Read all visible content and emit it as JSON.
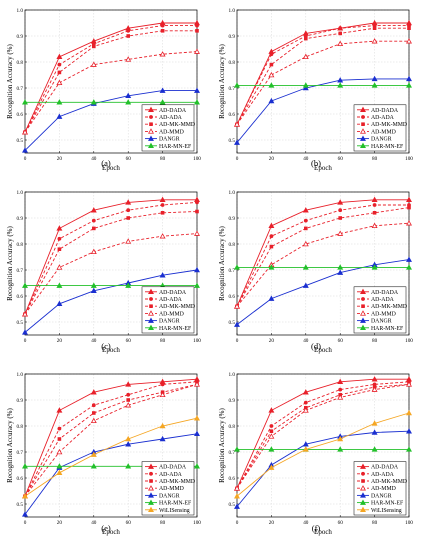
{
  "figure": {
    "panel_labels": [
      "(a)",
      "(b)",
      "(c)",
      "(d)",
      "(e)",
      "(f)"
    ]
  },
  "series_styles": [
    {
      "name": "AD-DADA",
      "color": "#e8202a",
      "dash": "",
      "marker": "tri"
    },
    {
      "name": "AD-ADA",
      "color": "#e8202a",
      "dash": "3,2",
      "marker": "circle"
    },
    {
      "name": "AD-MK-MMD",
      "color": "#e8202a",
      "dash": "3,2",
      "marker": "square"
    },
    {
      "name": "AD-MMD",
      "color": "#e8202a",
      "dash": "3,2",
      "marker": "tri-open"
    },
    {
      "name": "DANGR",
      "color": "#1a2fd0",
      "dash": "",
      "marker": "tri"
    },
    {
      "name": "HAR-MN-EF",
      "color": "#22c02a",
      "dash": "",
      "marker": "tri"
    },
    {
      "name": "WiLISensing",
      "color": "#f5a623",
      "dash": "",
      "marker": "tri"
    }
  ],
  "chart_data": [
    {
      "type": "line",
      "title": "",
      "xlabel": "Epoch",
      "ylabel": "Recognition Accuracy (%)",
      "xlim": [
        0,
        100
      ],
      "ylim": [
        0.45,
        1.0
      ],
      "xticks": [
        0,
        20,
        40,
        60,
        80,
        100
      ],
      "xtick_labels": [
        "0",
        "20",
        "40",
        "60",
        "80",
        "100"
      ],
      "yticks": [
        0.5,
        0.6,
        0.7,
        0.8,
        0.9,
        1.0
      ],
      "ytick_labels": [
        "0.5",
        "0.6",
        "0.7",
        "0.8",
        "0.9",
        "1.0"
      ],
      "grid": true,
      "legend": "bottom-right",
      "legend_entries": [
        "AD-DADA",
        "AD-ADA",
        "AD-MK-MMD",
        "AD-MMD",
        "DANGR",
        "HAR-MN-EF"
      ],
      "x": [
        0,
        20,
        40,
        60,
        80,
        100
      ],
      "series": [
        {
          "name": "AD-DADA",
          "values": [
            0.53,
            0.82,
            0.88,
            0.93,
            0.95,
            0.95
          ]
        },
        {
          "name": "AD-ADA",
          "values": [
            0.53,
            0.79,
            0.87,
            0.92,
            0.94,
            0.94
          ]
        },
        {
          "name": "AD-MK-MMD",
          "values": [
            0.53,
            0.76,
            0.86,
            0.9,
            0.92,
            0.92
          ]
        },
        {
          "name": "AD-MMD",
          "values": [
            0.53,
            0.72,
            0.79,
            0.81,
            0.83,
            0.84
          ]
        },
        {
          "name": "DANGR",
          "values": [
            0.46,
            0.59,
            0.64,
            0.67,
            0.69,
            0.69
          ]
        },
        {
          "name": "HAR-MN-EF",
          "values": [
            0.645,
            0.645,
            0.645,
            0.645,
            0.645,
            0.645
          ]
        }
      ]
    },
    {
      "type": "line",
      "title": "",
      "xlabel": "Epoch",
      "ylabel": "Recognition Accuracy (%)",
      "xlim": [
        0,
        100
      ],
      "ylim": [
        0.45,
        1.0
      ],
      "xticks": [
        0,
        20,
        40,
        60,
        80,
        100
      ],
      "xtick_labels": [
        "0",
        "20",
        "40",
        "60",
        "80",
        "100"
      ],
      "yticks": [
        0.5,
        0.6,
        0.7,
        0.8,
        0.9,
        1.0
      ],
      "ytick_labels": [
        "0.5",
        "0.6",
        "0.7",
        "0.8",
        "0.9",
        "1.0"
      ],
      "grid": true,
      "legend": "bottom-right",
      "legend_entries": [
        "AD-DADA",
        "AD-ADA",
        "AD-MK-MMD",
        "AD-MMD",
        "DANGR",
        "HAR-MN-EF"
      ],
      "x": [
        0,
        20,
        40,
        60,
        80,
        100
      ],
      "series": [
        {
          "name": "AD-DADA",
          "values": [
            0.56,
            0.84,
            0.91,
            0.93,
            0.95,
            0.95
          ]
        },
        {
          "name": "AD-ADA",
          "values": [
            0.56,
            0.83,
            0.9,
            0.93,
            0.94,
            0.94
          ]
        },
        {
          "name": "AD-MK-MMD",
          "values": [
            0.56,
            0.79,
            0.89,
            0.91,
            0.93,
            0.93
          ]
        },
        {
          "name": "AD-MMD",
          "values": [
            0.56,
            0.75,
            0.82,
            0.87,
            0.88,
            0.88
          ]
        },
        {
          "name": "DANGR",
          "values": [
            0.49,
            0.65,
            0.7,
            0.73,
            0.735,
            0.735
          ]
        },
        {
          "name": "HAR-MN-EF",
          "values": [
            0.71,
            0.71,
            0.71,
            0.71,
            0.71,
            0.71
          ]
        }
      ]
    },
    {
      "type": "line",
      "title": "",
      "xlabel": "Epoch",
      "ylabel": "Recognition Accuracy (%)",
      "xlim": [
        0,
        100
      ],
      "ylim": [
        0.45,
        1.0
      ],
      "xticks": [
        0,
        20,
        40,
        60,
        80,
        100
      ],
      "xtick_labels": [
        "0",
        "20",
        "40",
        "60",
        "80",
        "100"
      ],
      "yticks": [
        0.5,
        0.6,
        0.7,
        0.8,
        0.9,
        1.0
      ],
      "ytick_labels": [
        "0.5",
        "0.6",
        "0.7",
        "0.8",
        "0.9",
        "1.0"
      ],
      "grid": true,
      "legend": "bottom-right",
      "legend_entries": [
        "AD-DADA",
        "AD-ADA",
        "AD-MK-MMD",
        "AD-MMD",
        "DANGR",
        "HAR-MN-EF"
      ],
      "x": [
        0,
        20,
        40,
        60,
        80,
        100
      ],
      "series": [
        {
          "name": "AD-DADA",
          "values": [
            0.53,
            0.86,
            0.93,
            0.96,
            0.97,
            0.97
          ]
        },
        {
          "name": "AD-ADA",
          "values": [
            0.53,
            0.82,
            0.89,
            0.93,
            0.95,
            0.96
          ]
        },
        {
          "name": "AD-MK-MMD",
          "values": [
            0.53,
            0.78,
            0.86,
            0.9,
            0.92,
            0.925
          ]
        },
        {
          "name": "AD-MMD",
          "values": [
            0.53,
            0.71,
            0.77,
            0.81,
            0.83,
            0.84
          ]
        },
        {
          "name": "DANGR",
          "values": [
            0.46,
            0.57,
            0.62,
            0.65,
            0.68,
            0.7
          ]
        },
        {
          "name": "HAR-MN-EF",
          "values": [
            0.64,
            0.64,
            0.64,
            0.64,
            0.64,
            0.64
          ]
        }
      ]
    },
    {
      "type": "line",
      "title": "",
      "xlabel": "Epoch",
      "ylabel": "Recognition Accuracy (%)",
      "xlim": [
        0,
        100
      ],
      "ylim": [
        0.45,
        1.0
      ],
      "xticks": [
        0,
        20,
        40,
        60,
        80,
        100
      ],
      "xtick_labels": [
        "0",
        "20",
        "40",
        "60",
        "80",
        "100"
      ],
      "yticks": [
        0.5,
        0.6,
        0.7,
        0.8,
        0.9,
        1.0
      ],
      "ytick_labels": [
        "0.5",
        "0.6",
        "0.7",
        "0.8",
        "0.9",
        "1.0"
      ],
      "grid": true,
      "legend": "bottom-right",
      "legend_entries": [
        "AD-DADA",
        "AD-ADA",
        "AD-MK-MMD",
        "AD-MMD",
        "DANGR",
        "HAR-MN-EF"
      ],
      "x": [
        0,
        20,
        40,
        60,
        80,
        100
      ],
      "series": [
        {
          "name": "AD-DADA",
          "values": [
            0.56,
            0.87,
            0.93,
            0.96,
            0.97,
            0.97
          ]
        },
        {
          "name": "AD-ADA",
          "values": [
            0.56,
            0.83,
            0.89,
            0.93,
            0.95,
            0.95
          ]
        },
        {
          "name": "AD-MK-MMD",
          "values": [
            0.56,
            0.79,
            0.86,
            0.9,
            0.92,
            0.94
          ]
        },
        {
          "name": "AD-MMD",
          "values": [
            0.56,
            0.72,
            0.8,
            0.84,
            0.87,
            0.88
          ]
        },
        {
          "name": "DANGR",
          "values": [
            0.49,
            0.59,
            0.64,
            0.69,
            0.72,
            0.74
          ]
        },
        {
          "name": "HAR-MN-EF",
          "values": [
            0.71,
            0.71,
            0.71,
            0.71,
            0.71,
            0.71
          ]
        }
      ]
    },
    {
      "type": "line",
      "title": "",
      "xlabel": "Epoch",
      "ylabel": "Recognition Accuracy (%)",
      "xlim": [
        0,
        100
      ],
      "ylim": [
        0.45,
        1.0
      ],
      "xticks": [
        0,
        20,
        40,
        60,
        80,
        100
      ],
      "xtick_labels": [
        "0",
        "20",
        "40",
        "60",
        "80",
        "100"
      ],
      "yticks": [
        0.5,
        0.6,
        0.7,
        0.8,
        0.9,
        1.0
      ],
      "ytick_labels": [
        "0.5",
        "0.6",
        "0.7",
        "0.8",
        "0.9",
        "1.0"
      ],
      "grid": true,
      "legend": "bottom-right",
      "legend_entries": [
        "AD-DADA",
        "AD-ADA",
        "AD-MK-MMD",
        "AD-MMD",
        "DANGR",
        "HAR-MN-EF",
        "WiLISensing"
      ],
      "x": [
        0,
        20,
        40,
        60,
        80,
        100
      ],
      "series": [
        {
          "name": "AD-DADA",
          "values": [
            0.53,
            0.86,
            0.93,
            0.96,
            0.97,
            0.98
          ]
        },
        {
          "name": "AD-ADA",
          "values": [
            0.53,
            0.79,
            0.88,
            0.92,
            0.96,
            0.97
          ]
        },
        {
          "name": "AD-MK-MMD",
          "values": [
            0.53,
            0.75,
            0.85,
            0.9,
            0.93,
            0.96
          ]
        },
        {
          "name": "AD-MMD",
          "values": [
            0.53,
            0.7,
            0.82,
            0.88,
            0.92,
            0.96
          ]
        },
        {
          "name": "DANGR",
          "values": [
            0.46,
            0.64,
            0.7,
            0.73,
            0.75,
            0.77
          ]
        },
        {
          "name": "HAR-MN-EF",
          "values": [
            0.645,
            0.645,
            0.645,
            0.645,
            0.645,
            0.645
          ]
        },
        {
          "name": "WiLISensing",
          "values": [
            0.53,
            0.62,
            0.69,
            0.75,
            0.8,
            0.83
          ]
        }
      ]
    },
    {
      "type": "line",
      "title": "",
      "xlabel": "Epoch",
      "ylabel": "Recognition Accuracy (%)",
      "xlim": [
        0,
        100
      ],
      "ylim": [
        0.45,
        1.0
      ],
      "xticks": [
        0,
        20,
        40,
        60,
        80,
        100
      ],
      "xtick_labels": [
        "0",
        "20",
        "40",
        "60",
        "80",
        "100"
      ],
      "yticks": [
        0.5,
        0.6,
        0.7,
        0.8,
        0.9,
        1.0
      ],
      "ytick_labels": [
        "0.5",
        "0.6",
        "0.7",
        "0.8",
        "0.9",
        "1.0"
      ],
      "grid": true,
      "legend": "bottom-right",
      "legend_entries": [
        "AD-DADA",
        "AD-ADA",
        "AD-MK-MMD",
        "AD-MMD",
        "DANGR",
        "HAR-MN-EF",
        "WiLISensing"
      ],
      "x": [
        0,
        20,
        40,
        60,
        80,
        100
      ],
      "series": [
        {
          "name": "AD-DADA",
          "values": [
            0.56,
            0.86,
            0.93,
            0.97,
            0.98,
            0.98
          ]
        },
        {
          "name": "AD-ADA",
          "values": [
            0.56,
            0.8,
            0.89,
            0.94,
            0.96,
            0.97
          ]
        },
        {
          "name": "AD-MK-MMD",
          "values": [
            0.56,
            0.78,
            0.87,
            0.92,
            0.95,
            0.96
          ]
        },
        {
          "name": "AD-MMD",
          "values": [
            0.56,
            0.76,
            0.86,
            0.91,
            0.94,
            0.96
          ]
        },
        {
          "name": "DANGR",
          "values": [
            0.49,
            0.65,
            0.73,
            0.76,
            0.775,
            0.78
          ]
        },
        {
          "name": "HAR-MN-EF",
          "values": [
            0.71,
            0.71,
            0.71,
            0.71,
            0.71,
            0.71
          ]
        },
        {
          "name": "WiLISensing",
          "values": [
            0.53,
            0.64,
            0.71,
            0.75,
            0.81,
            0.85
          ]
        }
      ]
    }
  ]
}
